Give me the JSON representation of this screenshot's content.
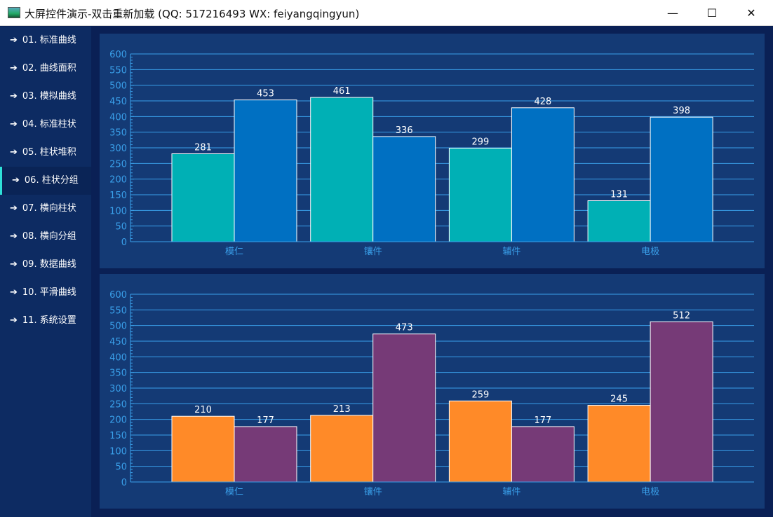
{
  "window": {
    "title": "大屏控件演示-双击重新加载 (QQ: 517216493  WX: feiyangqingyun)",
    "minimize": "—",
    "maximize": "☐",
    "close": "✕"
  },
  "sidebar": {
    "active_index": 5,
    "items": [
      {
        "label": "01. 标准曲线"
      },
      {
        "label": "02. 曲线面积"
      },
      {
        "label": "03. 模拟曲线"
      },
      {
        "label": "04. 标准柱状"
      },
      {
        "label": "05. 柱状堆积"
      },
      {
        "label": "06. 柱状分组"
      },
      {
        "label": "07. 横向柱状"
      },
      {
        "label": "08. 横向分组"
      },
      {
        "label": "09. 数据曲线"
      },
      {
        "label": "10. 平滑曲线"
      },
      {
        "label": "11. 系统设置"
      }
    ]
  },
  "colors": {
    "axis": "#3aa0ea",
    "label": "#ffffff",
    "bar_border": "#ffffff"
  },
  "chart_data": [
    {
      "type": "bar",
      "categories": [
        "模仁",
        "镶件",
        "辅件",
        "电极"
      ],
      "ylim": [
        0,
        600
      ],
      "yticks": [
        0,
        50,
        100,
        150,
        200,
        250,
        300,
        350,
        400,
        450,
        500,
        550,
        600
      ],
      "grid": true,
      "series": [
        {
          "color": "#00b0b5",
          "values": [
            281,
            461,
            299,
            131
          ]
        },
        {
          "color": "#0070c2",
          "values": [
            453,
            336,
            428,
            398
          ]
        }
      ]
    },
    {
      "type": "bar",
      "categories": [
        "模仁",
        "镶件",
        "辅件",
        "电极"
      ],
      "ylim": [
        0,
        600
      ],
      "yticks": [
        0,
        50,
        100,
        150,
        200,
        250,
        300,
        350,
        400,
        450,
        500,
        550,
        600
      ],
      "grid": true,
      "series": [
        {
          "color": "#ff8a28",
          "values": [
            210,
            213,
            259,
            245
          ]
        },
        {
          "color": "#763a77",
          "values": [
            177,
            473,
            177,
            512
          ]
        }
      ]
    }
  ]
}
